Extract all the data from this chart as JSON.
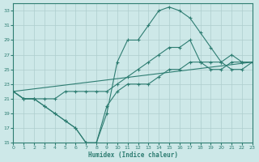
{
  "xlabel": "Humidex (Indice chaleur)",
  "xlim": [
    0,
    23
  ],
  "ylim": [
    15,
    34
  ],
  "yticks": [
    15,
    17,
    19,
    21,
    23,
    25,
    27,
    29,
    31,
    33
  ],
  "xticks": [
    0,
    1,
    2,
    3,
    4,
    5,
    6,
    7,
    8,
    9,
    10,
    11,
    12,
    13,
    14,
    15,
    16,
    17,
    18,
    19,
    20,
    21,
    22,
    23
  ],
  "bg_color": "#cde8e8",
  "line_color": "#2e7d72",
  "grid_color": "#aecece",
  "line1_x": [
    0,
    1,
    2,
    3,
    4,
    5,
    6,
    7,
    8,
    9,
    10,
    11,
    12,
    13,
    14,
    15,
    16,
    17,
    18,
    19,
    20,
    21,
    22,
    23
  ],
  "line1_y": [
    22,
    21,
    21,
    20,
    19,
    18,
    17,
    15,
    15,
    20,
    22,
    23,
    23,
    23,
    24,
    25,
    25,
    26,
    26,
    26,
    26,
    25,
    25,
    26
  ],
  "line2_x": [
    0,
    23
  ],
  "line2_y": [
    22,
    26
  ],
  "line3_x": [
    0,
    1,
    2,
    3,
    4,
    5,
    6,
    7,
    8,
    9,
    10,
    11,
    12,
    13,
    14,
    15,
    16,
    17,
    18,
    19,
    20,
    21,
    22,
    23
  ],
  "line3_y": [
    22,
    21,
    21,
    21,
    21,
    22,
    22,
    22,
    22,
    22,
    23,
    24,
    25,
    26,
    27,
    28,
    28,
    29,
    26,
    25,
    25,
    26,
    26,
    26
  ],
  "line4_x": [
    0,
    1,
    2,
    3,
    4,
    5,
    6,
    7,
    8,
    9,
    10,
    11,
    12,
    13,
    14,
    15,
    16,
    17,
    18,
    19,
    20,
    21,
    22,
    23
  ],
  "line4_y": [
    22,
    21,
    21,
    20,
    19,
    18,
    17,
    15,
    15,
    19,
    26,
    29,
    29,
    31,
    33,
    33.5,
    33,
    32,
    30,
    28,
    26,
    27,
    26,
    26
  ]
}
